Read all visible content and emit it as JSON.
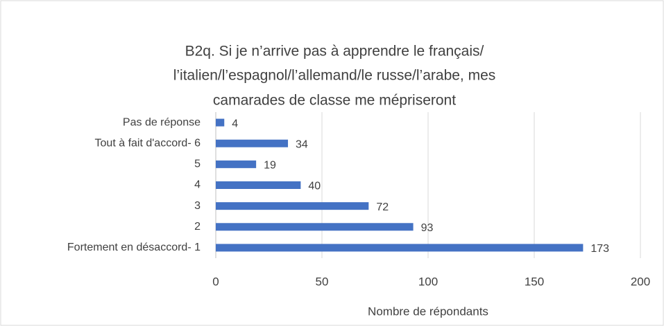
{
  "chart_data": {
    "type": "bar",
    "orientation": "horizontal",
    "title": [
      "B2q.  Si je n’arrive pas à apprendre le français/",
      "l’italien/l’espagnol/l’allemand/le russe/l’arabe, mes",
      "camarades de classe me mépriseront"
    ],
    "categories": [
      "Pas de réponse",
      "Tout à fait d'accord- 6",
      "5",
      "4",
      "3",
      "2",
      "Fortement en désaccord- 1"
    ],
    "values": [
      4,
      34,
      19,
      40,
      72,
      93,
      173
    ],
    "color": "#4472c4",
    "xlabel": "Nombre de répondants",
    "xlim": [
      0,
      200
    ],
    "xticks": [
      0,
      50,
      100,
      150,
      200
    ],
    "grid": true
  }
}
